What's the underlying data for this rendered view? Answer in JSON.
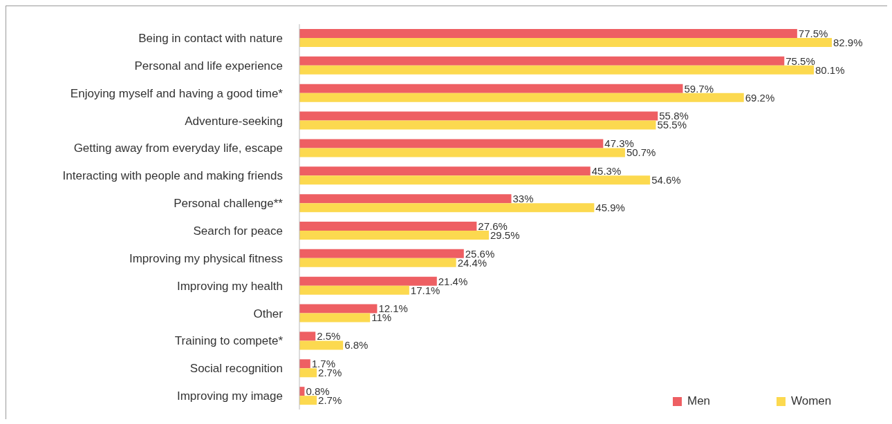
{
  "chart_data": {
    "type": "bar",
    "orientation": "horizontal",
    "legend": "bottom right",
    "categories": [
      "Being in contact with nature",
      "Personal and life experience",
      "Enjoying myself and having a good time*",
      "Adventure-seeking",
      "Getting away from everyday life, escape",
      "Interacting with people and making friends",
      "Personal challenge**",
      "Search for peace",
      "Improving my physical fitness",
      "Improving my health",
      "Other",
      "Training to compete*",
      "Social recognition",
      "Improving my image"
    ],
    "series": [
      {
        "name": "Men",
        "color": "#ee5f63",
        "values": [
          77.5,
          75.5,
          59.7,
          55.8,
          47.3,
          45.3,
          33,
          27.6,
          25.6,
          21.4,
          12.1,
          2.5,
          1.7,
          0.8
        ],
        "value_labels": [
          "77.5%",
          "75.5%",
          "59.7%",
          "55.8%",
          "47.3%",
          "45.3%",
          "33%",
          "27.6%",
          "25.6%",
          "21.4%",
          "12.1%",
          "2.5%",
          "1.7%",
          "0.8%"
        ]
      },
      {
        "name": "Women",
        "color": "#fcd94f",
        "values": [
          82.9,
          80.1,
          69.2,
          55.5,
          50.7,
          54.6,
          45.9,
          29.5,
          24.4,
          17.1,
          11,
          6.8,
          2.7,
          2.7
        ],
        "value_labels": [
          "82.9%",
          "80.1%",
          "69.2%",
          "55.5%",
          "50.7%",
          "54.6%",
          "45.9%",
          "29.5%",
          "24.4%",
          "17.1%",
          "11%",
          "6.8%",
          "2.7%",
          "2.7%"
        ]
      }
    ]
  }
}
